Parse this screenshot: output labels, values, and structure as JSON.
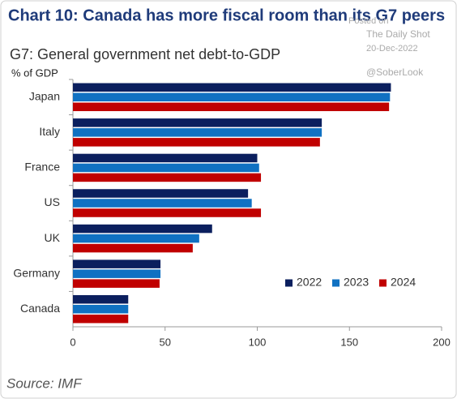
{
  "chart_data": {
    "type": "bar",
    "orientation": "horizontal",
    "title": "Chart 10: Canada has more fiscal room than its G7 peers",
    "subtitle": "G7: General government net debt-to-GDP",
    "y_axis_label": "% of GDP",
    "source": "Source: IMF",
    "watermark": [
      "Posted on",
      "The Daily Shot",
      "20-Dec-2022",
      "@SoberLook"
    ],
    "categories": [
      "Japan",
      "Italy",
      "France",
      "US",
      "UK",
      "Germany",
      "Canada"
    ],
    "series": [
      {
        "name": "2022",
        "color": "#0b1f5e",
        "values": [
          172.5,
          135,
          100,
          95,
          75.5,
          47.5,
          30
        ]
      },
      {
        "name": "2023",
        "color": "#1071c2",
        "values": [
          172,
          135,
          101,
          97,
          68.5,
          47.5,
          30
        ]
      },
      {
        "name": "2024",
        "color": "#c00000",
        "values": [
          171.5,
          134,
          102,
          102,
          65,
          47,
          30
        ]
      }
    ],
    "xlim": [
      0,
      200
    ],
    "xticks": [
      0,
      50,
      100,
      150,
      200
    ],
    "grid": false,
    "legend": "lower right"
  }
}
